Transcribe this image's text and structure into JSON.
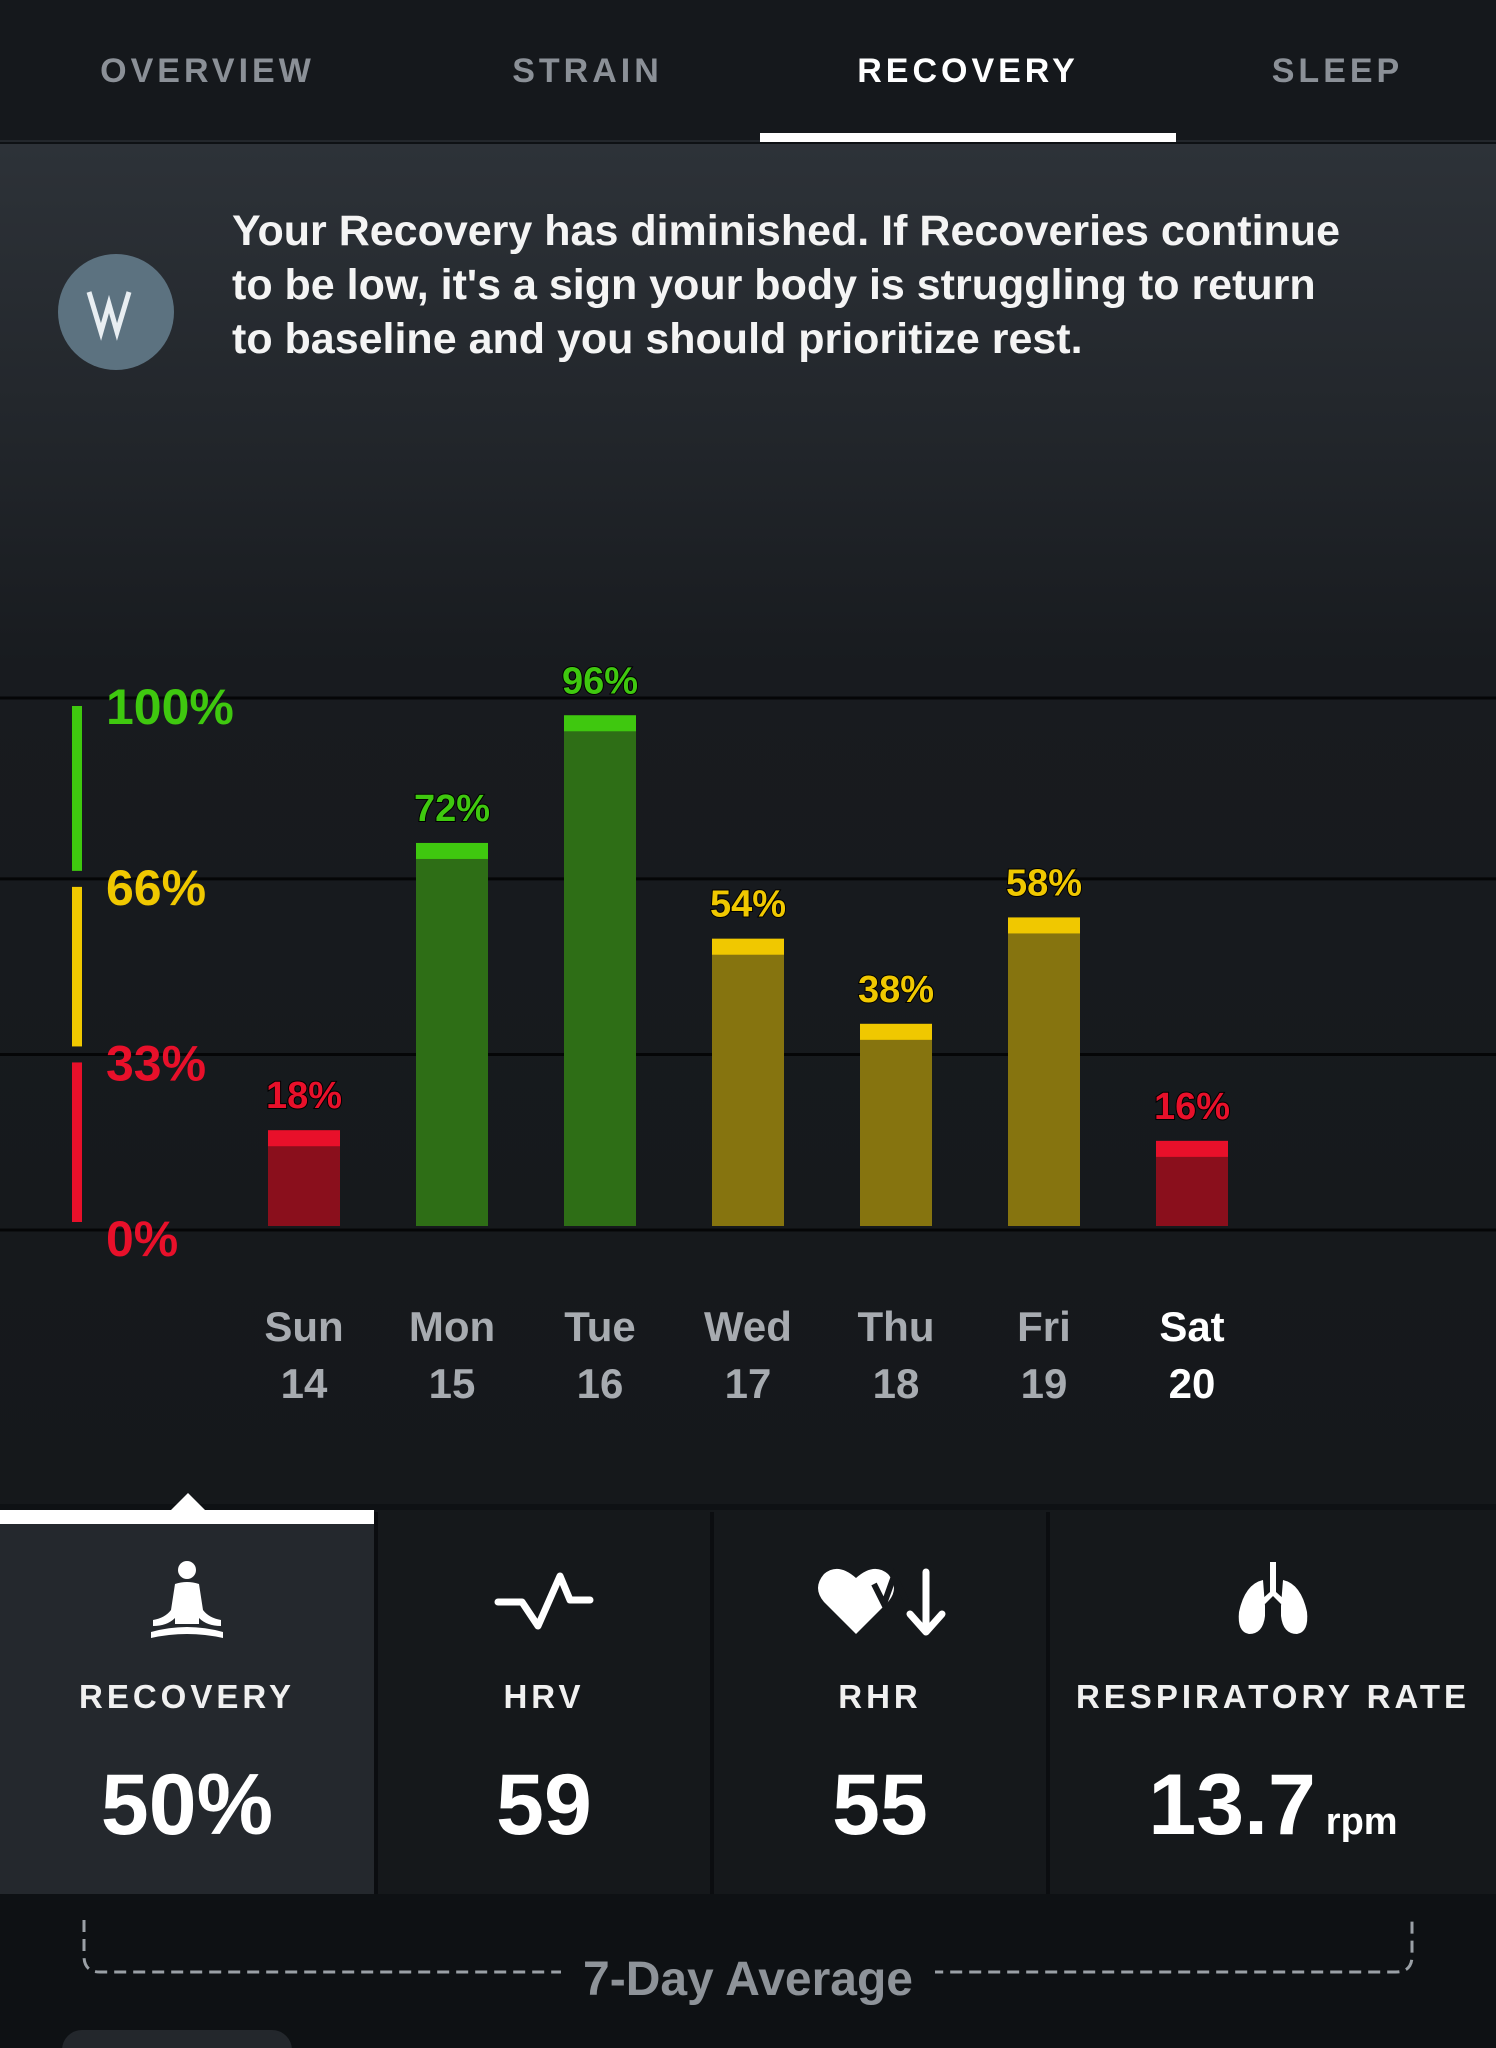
{
  "tabs": [
    {
      "label": "OVERVIEW",
      "active": false
    },
    {
      "label": "STRAIN",
      "active": false
    },
    {
      "label": "RECOVERY",
      "active": true
    },
    {
      "label": "SLEEP",
      "active": false
    }
  ],
  "insight": {
    "text": "Your Recovery has diminished. If Recoveries continue to be low, it's a sign your body is struggling to return to baseline and you should prioritize rest.",
    "avatar_icon": "whoop-logo-icon"
  },
  "colors": {
    "green": "#3fc80f",
    "yellow": "#f0c800",
    "red": "#e8102a",
    "green_bar": "#2e6e16",
    "yellow_bar": "#86740f",
    "red_bar": "#8a0f1c"
  },
  "chart_data": {
    "type": "bar",
    "categories": [
      "Sun 14",
      "Mon 15",
      "Tue 16",
      "Wed 17",
      "Thu 18",
      "Fri 19",
      "Sat 20"
    ],
    "days": [
      {
        "day": "Sun",
        "date": "14",
        "value": 18,
        "label": "18%",
        "zone": "red",
        "selected": false
      },
      {
        "day": "Mon",
        "date": "15",
        "value": 72,
        "label": "72%",
        "zone": "green",
        "selected": false
      },
      {
        "day": "Tue",
        "date": "16",
        "value": 96,
        "label": "96%",
        "zone": "green",
        "selected": false
      },
      {
        "day": "Wed",
        "date": "17",
        "value": 54,
        "label": "54%",
        "zone": "yellow",
        "selected": false
      },
      {
        "day": "Thu",
        "date": "18",
        "value": 38,
        "label": "38%",
        "zone": "yellow",
        "selected": false
      },
      {
        "day": "Fri",
        "date": "19",
        "value": 58,
        "label": "58%",
        "zone": "yellow",
        "selected": false
      },
      {
        "day": "Sat",
        "date": "20",
        "value": 16,
        "label": "16%",
        "zone": "red",
        "selected": true
      }
    ],
    "values": [
      18,
      72,
      96,
      54,
      38,
      58,
      16
    ],
    "yticks": [
      {
        "value": 100,
        "label": "100%",
        "zone": "green"
      },
      {
        "value": 66,
        "label": "66%",
        "zone": "yellow"
      },
      {
        "value": 33,
        "label": "33%",
        "zone": "red"
      },
      {
        "value": 0,
        "label": "0%",
        "zone": "red"
      }
    ],
    "ylim": [
      0,
      100
    ],
    "grid": true
  },
  "metrics": [
    {
      "label": "RECOVERY",
      "value": "50%",
      "unit": "",
      "icon": "meditation-icon",
      "selected": true
    },
    {
      "label": "HRV",
      "value": "59",
      "unit": "",
      "icon": "hrv-pulse-icon",
      "selected": false
    },
    {
      "label": "RHR",
      "value": "55",
      "unit": "",
      "icon": "heart-down-arrow-icon",
      "selected": false
    },
    {
      "label": "RESPIRATORY RATE",
      "value": "13.7",
      "unit": "rpm",
      "icon": "lungs-icon",
      "selected": false
    }
  ],
  "average": {
    "label": "7-Day Average"
  }
}
